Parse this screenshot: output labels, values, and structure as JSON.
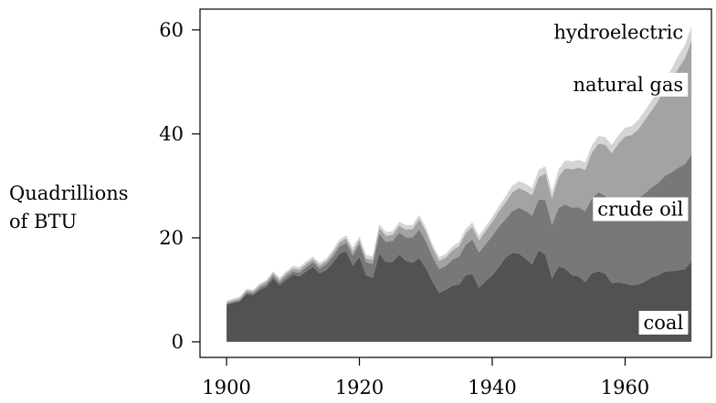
{
  "chart_data": {
    "type": "area",
    "stacked": true,
    "ylabel": [
      "Quadrillions",
      "of BTU"
    ],
    "xlabel": "",
    "xlim": [
      1896,
      1973
    ],
    "ylim": [
      -3,
      64
    ],
    "xticks": [
      1900,
      1920,
      1940,
      1960
    ],
    "yticks": [
      0,
      20,
      40,
      60
    ],
    "grid": false,
    "x": [
      1900,
      1901,
      1902,
      1903,
      1904,
      1905,
      1906,
      1907,
      1908,
      1909,
      1910,
      1911,
      1912,
      1913,
      1914,
      1915,
      1916,
      1917,
      1918,
      1919,
      1920,
      1921,
      1922,
      1923,
      1924,
      1925,
      1926,
      1927,
      1928,
      1929,
      1930,
      1931,
      1932,
      1933,
      1934,
      1935,
      1936,
      1937,
      1938,
      1939,
      1940,
      1941,
      1942,
      1943,
      1944,
      1945,
      1946,
      1947,
      1948,
      1949,
      1950,
      1951,
      1952,
      1953,
      1954,
      1955,
      1956,
      1957,
      1958,
      1959,
      1960,
      1961,
      1962,
      1963,
      1964,
      1965,
      1966,
      1967,
      1968,
      1969,
      1970
    ],
    "series": [
      {
        "name": "coal",
        "color": "#525252",
        "values": [
          7.2,
          7.5,
          7.8,
          9.2,
          9.0,
          10.0,
          10.6,
          12.2,
          10.9,
          12.0,
          12.9,
          12.6,
          13.6,
          14.4,
          13.2,
          13.8,
          15.2,
          16.9,
          17.5,
          14.6,
          16.4,
          12.8,
          12.3,
          17.0,
          15.3,
          15.4,
          16.8,
          15.6,
          15.2,
          16.1,
          14.2,
          11.6,
          9.4,
          10.0,
          10.8,
          11.0,
          12.8,
          13.1,
          10.4,
          11.7,
          12.8,
          14.4,
          16.2,
          17.1,
          17.0,
          16.0,
          14.9,
          17.6,
          16.7,
          12.2,
          14.5,
          14.1,
          12.8,
          12.6,
          11.5,
          13.2,
          13.6,
          13.1,
          11.3,
          11.5,
          11.2,
          10.9,
          11.0,
          11.6,
          12.4,
          12.8,
          13.5,
          13.6,
          13.8,
          14.0,
          15.5
        ]
      },
      {
        "name": "crude oil",
        "color": "#787878",
        "values": [
          0.1,
          0.2,
          0.2,
          0.3,
          0.3,
          0.4,
          0.5,
          0.5,
          0.5,
          0.6,
          0.6,
          0.7,
          0.8,
          0.9,
          0.9,
          1.1,
          1.2,
          1.4,
          1.6,
          2.0,
          2.4,
          2.5,
          2.7,
          3.8,
          3.9,
          4.0,
          4.2,
          4.5,
          4.9,
          5.5,
          5.2,
          4.8,
          4.6,
          4.6,
          5.0,
          5.4,
          5.9,
          6.6,
          6.8,
          7.1,
          7.6,
          7.8,
          7.4,
          8.0,
          8.8,
          9.2,
          9.4,
          9.8,
          10.6,
          10.3,
          11.3,
          12.3,
          13.0,
          13.3,
          13.6,
          14.4,
          15.2,
          15.0,
          14.8,
          15.6,
          16.0,
          16.2,
          16.6,
          17.0,
          17.3,
          17.8,
          18.4,
          19.0,
          19.7,
          20.2,
          20.5
        ]
      },
      {
        "name": "natural gas",
        "color": "#a3a3a3",
        "values": [
          0.3,
          0.3,
          0.4,
          0.4,
          0.4,
          0.5,
          0.5,
          0.5,
          0.5,
          0.6,
          0.6,
          0.6,
          0.6,
          0.6,
          0.6,
          0.6,
          0.7,
          0.8,
          0.8,
          0.8,
          0.8,
          0.7,
          0.8,
          1.1,
          1.2,
          1.2,
          1.3,
          1.5,
          1.6,
          2.0,
          1.9,
          1.7,
          1.6,
          1.6,
          1.8,
          2.0,
          2.2,
          2.4,
          2.3,
          2.5,
          2.7,
          2.9,
          3.2,
          3.6,
          3.8,
          3.8,
          3.9,
          4.3,
          5.1,
          5.0,
          6.0,
          7.0,
          7.4,
          7.6,
          8.0,
          8.8,
          9.3,
          9.8,
          10.2,
          11.0,
          12.3,
          12.7,
          13.3,
          14.1,
          14.8,
          15.8,
          16.9,
          17.6,
          19.1,
          20.3,
          22.0
        ]
      },
      {
        "name": "hydroelectric",
        "color": "#d4d4d4",
        "values": [
          0.3,
          0.3,
          0.3,
          0.3,
          0.3,
          0.3,
          0.3,
          0.4,
          0.4,
          0.4,
          0.5,
          0.5,
          0.5,
          0.5,
          0.5,
          0.5,
          0.6,
          0.6,
          0.6,
          0.7,
          0.7,
          0.7,
          0.7,
          0.7,
          0.7,
          0.7,
          0.8,
          0.8,
          0.8,
          0.8,
          0.7,
          0.7,
          0.7,
          0.7,
          0.7,
          0.8,
          0.8,
          0.9,
          0.9,
          0.9,
          0.9,
          1.0,
          1.2,
          1.3,
          1.3,
          1.4,
          1.4,
          1.4,
          1.4,
          1.4,
          1.4,
          1.5,
          1.5,
          1.5,
          1.4,
          1.4,
          1.5,
          1.5,
          1.6,
          1.6,
          1.7,
          1.7,
          1.8,
          1.8,
          1.9,
          2.0,
          2.0,
          2.3,
          2.4,
          2.6,
          2.7
        ]
      }
    ],
    "annotations": [
      {
        "text": "coal",
        "series": "coal",
        "placement": "lower-right"
      },
      {
        "text": "crude oil",
        "series": "crude oil",
        "placement": "right"
      },
      {
        "text": "natural gas",
        "series": "natural gas",
        "placement": "right"
      },
      {
        "text": "hydroelectric",
        "series": "hydroelectric",
        "placement": "top-right"
      }
    ]
  }
}
